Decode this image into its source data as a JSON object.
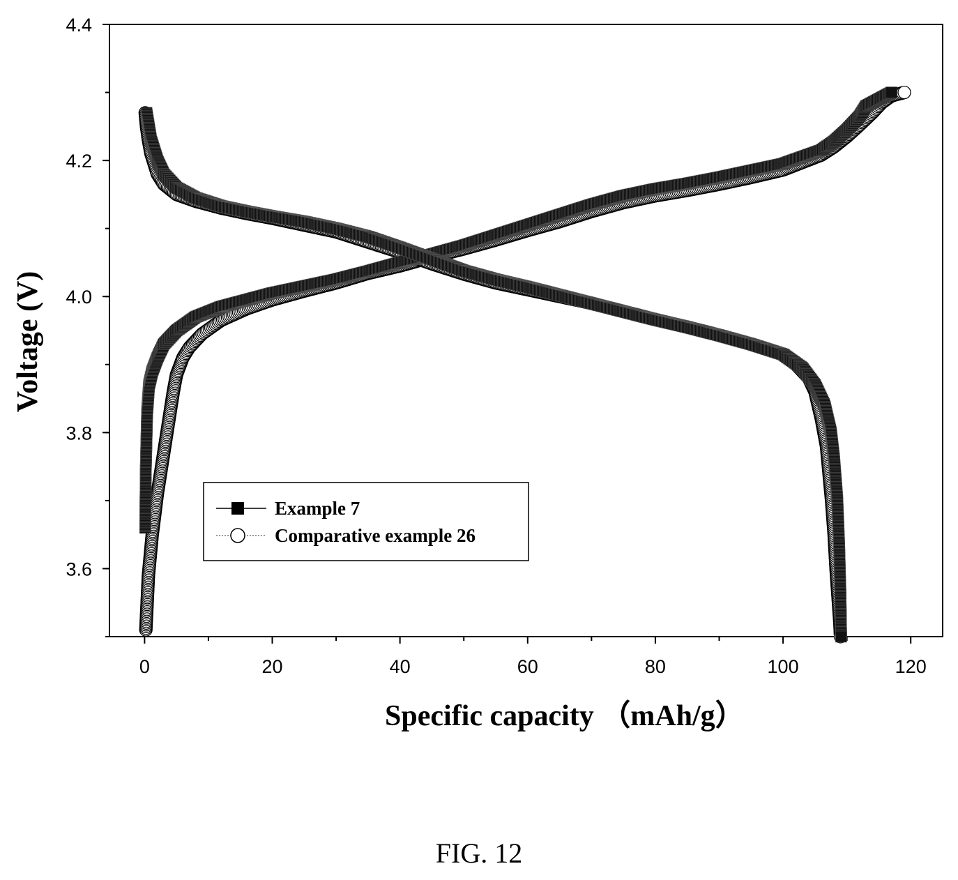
{
  "figure_caption": "FIG. 12",
  "chart_data": {
    "type": "scatter",
    "xlabel": "Specific capacity （mAh/g）",
    "ylabel": "Voltage (V)",
    "xlim": [
      -5.5,
      125
    ],
    "ylim": [
      3.5,
      4.4
    ],
    "xticks": [
      0,
      20,
      40,
      60,
      80,
      100,
      120
    ],
    "yticks": [
      3.6,
      3.8,
      4.0,
      4.2,
      4.4
    ],
    "xtick_labels": [
      "0",
      "20",
      "40",
      "60",
      "80",
      "100",
      "120"
    ],
    "ytick_labels": [
      "3.6",
      "3.8",
      "4.0",
      "4.2",
      "4.4"
    ],
    "legend_position": "lower-left",
    "grid": false,
    "series": [
      {
        "name": "Example 7",
        "marker": "square",
        "color": "#000000",
        "curves": [
          {
            "segment": "charge",
            "x": [
              0.1,
              0.2,
              0.4,
              0.7,
              1.2,
              2,
              3,
              5,
              8,
              12,
              16,
              20,
              25,
              30,
              35,
              40,
              45,
              50,
              55,
              60,
              65,
              70,
              75,
              80,
              85,
              90,
              95,
              100,
              103,
              106,
              108,
              110,
              112,
              113,
              115,
              117
            ],
            "y": [
              3.66,
              3.75,
              3.83,
              3.87,
              3.89,
              3.91,
              3.93,
              3.95,
              3.97,
              3.985,
              3.995,
              4.005,
              4.015,
              4.025,
              4.037,
              4.05,
              4.062,
              4.075,
              4.09,
              4.105,
              4.12,
              4.135,
              4.148,
              4.158,
              4.166,
              4.175,
              4.185,
              4.195,
              4.205,
              4.215,
              4.228,
              4.245,
              4.265,
              4.28,
              4.29,
              4.3
            ]
          },
          {
            "segment": "discharge",
            "x": [
              0.3,
              1,
              2,
              3,
              5,
              8,
              12,
              16,
              20,
              25,
              30,
              35,
              40,
              45,
              50,
              55,
              60,
              65,
              70,
              75,
              80,
              85,
              90,
              95,
              100,
              103,
              105,
              106.5,
              107.5,
              108,
              108.5,
              108.8,
              109,
              109.1
            ],
            "y": [
              4.27,
              4.23,
              4.2,
              4.18,
              4.16,
              4.145,
              4.133,
              4.125,
              4.118,
              4.11,
              4.1,
              4.088,
              4.072,
              4.055,
              4.038,
              4.025,
              4.014,
              4.002,
              3.99,
              3.978,
              3.966,
              3.955,
              3.943,
              3.93,
              3.915,
              3.895,
              3.87,
              3.84,
              3.8,
              3.76,
              3.7,
              3.63,
              3.56,
              3.5
            ]
          }
        ]
      },
      {
        "name": "Comparative example 26",
        "marker": "circle",
        "color": "#ffffff",
        "curves": [
          {
            "segment": "charge",
            "x": [
              0.2,
              0.4,
              0.6,
              0.9,
              1.2,
              1.6,
              2,
              2.5,
              3,
              3.5,
              4,
              4.5,
              5,
              6,
              7,
              9,
              12,
              16,
              20,
              25,
              30,
              35,
              40,
              45,
              50,
              55,
              60,
              65,
              70,
              75,
              80,
              85,
              90,
              95,
              100,
              103,
              106,
              108,
              110,
              112,
              114,
              115.5,
              117,
              119
            ],
            "y": [
              3.51,
              3.55,
              3.59,
              3.62,
              3.65,
              3.68,
              3.71,
              3.74,
              3.77,
              3.8,
              3.83,
              3.86,
              3.885,
              3.91,
              3.925,
              3.945,
              3.965,
              3.982,
              3.995,
              4.008,
              4.02,
              4.034,
              4.045,
              4.058,
              4.07,
              4.083,
              4.097,
              4.11,
              4.125,
              4.138,
              4.148,
              4.156,
              4.165,
              4.175,
              4.186,
              4.197,
              4.208,
              4.22,
              4.235,
              4.252,
              4.27,
              4.285,
              4.295,
              4.3
            ]
          },
          {
            "segment": "discharge",
            "x": [
              0.1,
              0.3,
              0.6,
              1,
              1.5,
              2,
              3,
              5,
              8,
              12,
              16,
              20,
              25,
              30,
              35,
              40,
              45,
              50,
              55,
              60,
              65,
              70,
              75,
              80,
              85,
              90,
              95,
              100,
              102,
              104,
              105,
              106,
              106.8,
              107.2,
              107.6,
              108,
              108.3,
              108.6,
              108.9,
              109
            ],
            "y": [
              4.27,
              4.25,
              4.23,
              4.21,
              4.195,
              4.18,
              4.165,
              4.15,
              4.14,
              4.13,
              4.122,
              4.115,
              4.105,
              4.095,
              4.08,
              4.065,
              4.048,
              4.033,
              4.02,
              4.01,
              4.0,
              3.99,
              3.978,
              3.966,
              3.955,
              3.943,
              3.93,
              3.915,
              3.9,
              3.88,
              3.86,
              3.82,
              3.78,
              3.74,
              3.7,
              3.65,
              3.6,
              3.56,
              3.52,
              3.5
            ]
          }
        ]
      }
    ]
  }
}
